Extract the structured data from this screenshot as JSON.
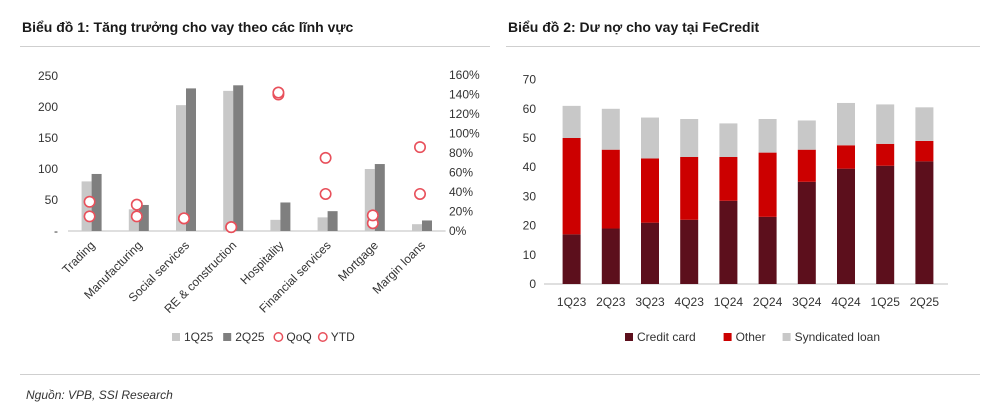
{
  "chart_data": [
    {
      "type": "bar",
      "title": "Biểu đồ 1: Tăng trưởng cho vay theo các lĩnh vực",
      "categories": [
        "Trading",
        "Manufacturing",
        "Social services",
        "RE & construction",
        "Hospitality",
        "Financial services",
        "Mortgage",
        "Margin loans"
      ],
      "y_ticks": [
        "-",
        "50",
        "100",
        "150",
        "200",
        "250"
      ],
      "y2_ticks": [
        "0%",
        "20%",
        "40%",
        "60%",
        "80%",
        "100%",
        "120%",
        "140%",
        "160%"
      ],
      "ylim": [
        0,
        250
      ],
      "y2lim": [
        0,
        1.6
      ],
      "series": [
        {
          "name": "1Q25",
          "kind": "bar",
          "color": "#c8c8c8",
          "values": [
            80,
            35,
            203,
            226,
            18,
            22,
            100,
            11
          ]
        },
        {
          "name": "2Q25",
          "kind": "bar",
          "color": "#7f7f7f",
          "values": [
            92,
            42,
            230,
            235,
            46,
            32,
            108,
            17
          ]
        },
        {
          "name": "QoQ",
          "kind": "marker",
          "axis": "secondary",
          "color": "#e8505b",
          "values": [
            0.15,
            0.15,
            0.13,
            0.04,
            1.4,
            0.38,
            0.08,
            0.38
          ]
        },
        {
          "name": "YTD",
          "kind": "marker",
          "axis": "secondary",
          "color": "#e8505b",
          "values": [
            0.3,
            0.27,
            0.13,
            0.04,
            1.42,
            0.75,
            0.16,
            0.86
          ]
        }
      ],
      "legend": [
        "1Q25",
        "2Q25",
        "QoQ",
        "YTD"
      ],
      "legend_position": "bottom"
    },
    {
      "type": "bar",
      "stacked": true,
      "title": "Biểu đồ 2: Dư nợ cho vay tại FeCredit",
      "categories": [
        "1Q23",
        "2Q23",
        "3Q23",
        "4Q23",
        "1Q24",
        "2Q24",
        "3Q24",
        "4Q24",
        "1Q25",
        "2Q25"
      ],
      "y_ticks": [
        "0",
        "10",
        "20",
        "30",
        "40",
        "50",
        "60",
        "70"
      ],
      "ylim": [
        0,
        70
      ],
      "series": [
        {
          "name": "Credit card",
          "color": "#5c0f1c",
          "values": [
            17,
            19,
            21,
            22,
            28.5,
            23,
            35,
            39.5,
            40.5,
            42
          ]
        },
        {
          "name": "Other",
          "color": "#cc0000",
          "values": [
            33,
            27,
            22,
            21.5,
            15,
            22,
            11,
            8,
            7.5,
            7
          ]
        },
        {
          "name": "Syndicated loan",
          "color": "#c8c8c8",
          "values": [
            11,
            14,
            14,
            13,
            11.5,
            11.5,
            10,
            14.5,
            13.5,
            11.5
          ]
        }
      ],
      "legend": [
        "Credit card",
        "Other",
        "Syndicated loan"
      ],
      "legend_position": "bottom"
    }
  ],
  "source": "Nguồn: VPB, SSI Research"
}
